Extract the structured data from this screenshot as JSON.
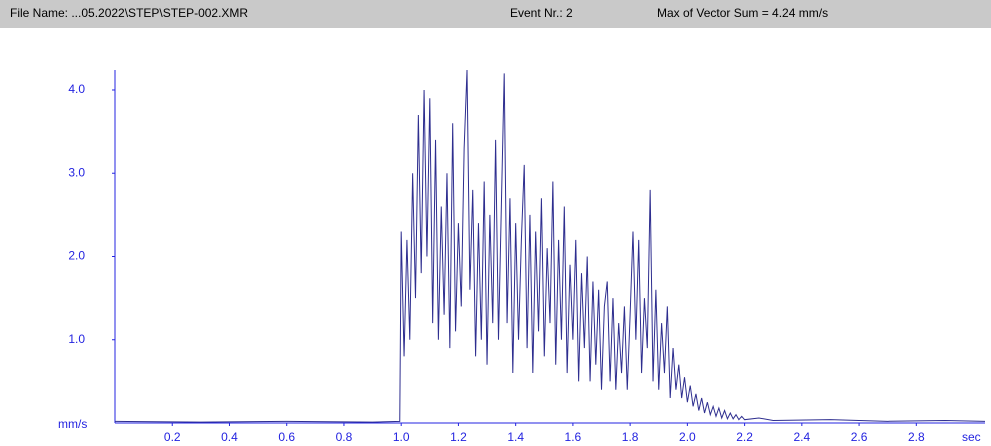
{
  "header": {
    "file_name": "File Name: ...05.2022\\STEP\\STEP-002.XMR",
    "event": "Event Nr.: 2",
    "max": "Max of Vector Sum = 4.24 mm/s"
  },
  "chart_data": {
    "type": "line",
    "y_label": "mm/s",
    "x_label": "sec",
    "xlim": [
      0,
      3.04
    ],
    "ylim": [
      0,
      4.24
    ],
    "xticks": [
      0.2,
      0.4,
      0.6,
      0.8,
      {
        "value": 1.0,
        "label": "1.0"
      },
      1.2,
      1.4,
      1.6,
      1.8,
      {
        "value": 2.0,
        "label": "2.0"
      },
      2.2,
      2.4,
      2.6,
      2.8
    ],
    "yticks": [
      {
        "value": 1.0,
        "label": "1.0"
      },
      {
        "value": 2.0,
        "label": "2.0"
      },
      {
        "value": 3.0,
        "label": "3.0"
      },
      {
        "value": 4.0,
        "label": "4.0"
      }
    ],
    "x": [
      0,
      0.3,
      0.6,
      0.9,
      0.995,
      1.0,
      1.01,
      1.02,
      1.03,
      1.04,
      1.05,
      1.06,
      1.07,
      1.08,
      1.09,
      1.1,
      1.11,
      1.12,
      1.13,
      1.14,
      1.15,
      1.16,
      1.17,
      1.18,
      1.19,
      1.2,
      1.21,
      1.22,
      1.23,
      1.24,
      1.25,
      1.26,
      1.27,
      1.28,
      1.29,
      1.3,
      1.31,
      1.32,
      1.33,
      1.34,
      1.35,
      1.36,
      1.37,
      1.38,
      1.39,
      1.4,
      1.41,
      1.42,
      1.43,
      1.44,
      1.45,
      1.46,
      1.47,
      1.48,
      1.49,
      1.5,
      1.51,
      1.52,
      1.53,
      1.54,
      1.55,
      1.56,
      1.57,
      1.58,
      1.59,
      1.6,
      1.61,
      1.62,
      1.63,
      1.64,
      1.65,
      1.66,
      1.67,
      1.68,
      1.69,
      1.7,
      1.71,
      1.72,
      1.73,
      1.74,
      1.75,
      1.76,
      1.77,
      1.78,
      1.79,
      1.8,
      1.81,
      1.82,
      1.83,
      1.84,
      1.85,
      1.86,
      1.87,
      1.88,
      1.89,
      1.9,
      1.91,
      1.92,
      1.93,
      1.94,
      1.95,
      1.96,
      1.97,
      1.98,
      1.99,
      2.0,
      2.01,
      2.02,
      2.03,
      2.04,
      2.05,
      2.06,
      2.07,
      2.08,
      2.09,
      2.1,
      2.11,
      2.12,
      2.13,
      2.14,
      2.15,
      2.16,
      2.17,
      2.18,
      2.19,
      2.2,
      2.25,
      2.3,
      2.5,
      2.7,
      2.9,
      3.04
    ],
    "series": [
      {
        "color": "#2e2e8f",
        "values": [
          0.02,
          0.01,
          0.02,
          0.01,
          0.02,
          2.3,
          0.8,
          2.2,
          1.0,
          3.0,
          1.5,
          3.7,
          1.8,
          4.0,
          2.0,
          3.9,
          1.2,
          3.4,
          1.0,
          2.6,
          1.3,
          3.0,
          0.9,
          3.6,
          1.1,
          2.4,
          1.4,
          3.3,
          4.24,
          1.6,
          2.8,
          0.8,
          2.4,
          1.0,
          2.9,
          0.7,
          2.5,
          1.2,
          3.4,
          1.0,
          2.6,
          4.2,
          1.2,
          2.7,
          0.6,
          2.4,
          1.0,
          2.2,
          3.1,
          0.9,
          2.5,
          0.6,
          2.3,
          1.1,
          2.7,
          0.8,
          2.1,
          1.2,
          2.9,
          0.7,
          2.2,
          1.0,
          2.6,
          0.6,
          1.9,
          1.0,
          2.2,
          0.5,
          1.8,
          0.9,
          2.0,
          0.5,
          1.7,
          0.7,
          1.6,
          0.4,
          1.4,
          1.7,
          0.5,
          1.5,
          0.4,
          1.2,
          0.6,
          1.4,
          0.4,
          1.3,
          2.3,
          1.0,
          2.2,
          0.6,
          1.5,
          0.9,
          2.8,
          0.5,
          1.6,
          0.4,
          1.2,
          0.6,
          1.4,
          0.3,
          0.9,
          0.4,
          0.7,
          0.3,
          0.55,
          0.25,
          0.45,
          0.2,
          0.35,
          0.15,
          0.3,
          0.12,
          0.25,
          0.1,
          0.2,
          0.08,
          0.18,
          0.06,
          0.15,
          0.05,
          0.12,
          0.05,
          0.1,
          0.04,
          0.08,
          0.04,
          0.06,
          0.03,
          0.04,
          0.02,
          0.03,
          0.02
        ]
      }
    ]
  }
}
